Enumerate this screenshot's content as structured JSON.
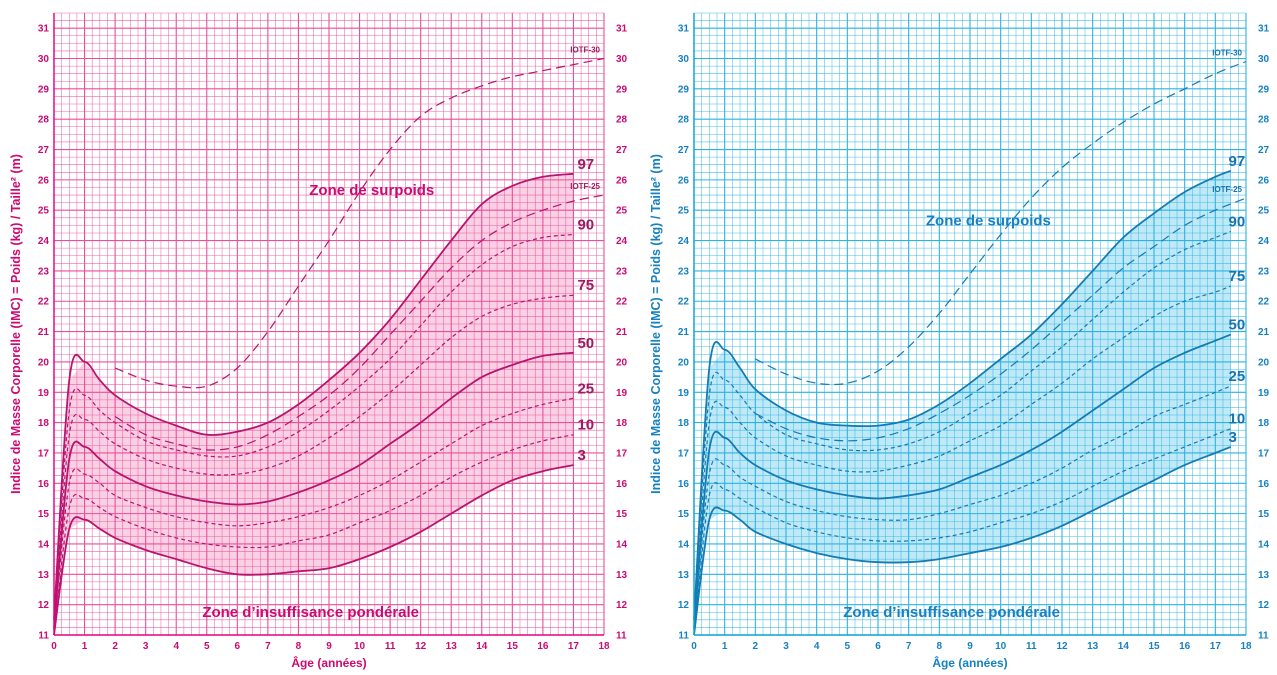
{
  "chart_data": [
    {
      "type": "line",
      "theme": {
        "accent": "#e6007e",
        "grid": "#ea4f9a",
        "fill": "#fad0e4",
        "text": "#cc0a72",
        "curve": "#b8146e",
        "label": "#9c1b63"
      },
      "ylabel": "Indice de Masse Corporelle (IMC) = Poids (kg) / Taille² (m)",
      "xlabel": "Âge (années)",
      "x_ticks": [
        "0",
        "1",
        "2",
        "3",
        "4",
        "5",
        "6",
        "7",
        "8",
        "9",
        "10",
        "11",
        "12",
        "13",
        "14",
        "15",
        "16",
        "17",
        "18"
      ],
      "y_ticks": [
        "11",
        "12",
        "13",
        "14",
        "15",
        "16",
        "17",
        "18",
        "19",
        "20",
        "21",
        "22",
        "23",
        "24",
        "25",
        "26",
        "27",
        "28",
        "29",
        "30",
        "31"
      ],
      "xlim": [
        0,
        18
      ],
      "ylim": [
        11,
        31.5
      ],
      "zone_over": "Zone de surpoids",
      "zone_under": "Zone d’insuffisance pondérale",
      "series": [
        {
          "name": "97",
          "style": "solid",
          "x": [
            0,
            0.5,
            1,
            1.5,
            2,
            3,
            4,
            5,
            6,
            7,
            8,
            9,
            10,
            11,
            12,
            13,
            14,
            15,
            16,
            17
          ],
          "y": [
            11.5,
            19.4,
            20,
            19.4,
            18.9,
            18.3,
            17.9,
            17.6,
            17.7,
            18,
            18.6,
            19.4,
            20.3,
            21.4,
            22.7,
            24,
            25.2,
            25.8,
            26.1,
            26.2
          ]
        },
        {
          "name": "IOTF-25",
          "style": "dash",
          "x": [
            2,
            3,
            4,
            5,
            6,
            7,
            8,
            9,
            10,
            11,
            12,
            13,
            14,
            15,
            16,
            17,
            18
          ],
          "y": [
            18.2,
            17.6,
            17.3,
            17.1,
            17.2,
            17.6,
            18.2,
            18.9,
            19.8,
            20.9,
            22,
            23.1,
            24,
            24.6,
            25,
            25.3,
            25.5
          ]
        },
        {
          "name": "90",
          "style": "short",
          "x": [
            0,
            0.5,
            1,
            1.5,
            2,
            3,
            4,
            5,
            6,
            7,
            8,
            9,
            10,
            11,
            12,
            13,
            14,
            15,
            16,
            17
          ],
          "y": [
            11.4,
            18.4,
            18.9,
            18.4,
            18,
            17.4,
            17.1,
            16.9,
            16.9,
            17.2,
            17.7,
            18.4,
            19.2,
            20.1,
            21.2,
            22.3,
            23.2,
            23.8,
            24.1,
            24.2
          ]
        },
        {
          "name": "75",
          "style": "short",
          "x": [
            0,
            0.5,
            1,
            1.5,
            2,
            3,
            4,
            5,
            6,
            7,
            8,
            9,
            10,
            11,
            12,
            13,
            14,
            15,
            16,
            17
          ],
          "y": [
            11.3,
            17.6,
            18.1,
            17.7,
            17.3,
            16.8,
            16.5,
            16.3,
            16.3,
            16.5,
            16.9,
            17.5,
            18.2,
            19,
            19.9,
            20.8,
            21.5,
            21.9,
            22.1,
            22.2
          ]
        },
        {
          "name": "50",
          "style": "solid",
          "x": [
            0,
            0.5,
            1,
            1.5,
            2,
            3,
            4,
            5,
            6,
            7,
            8,
            9,
            10,
            11,
            12,
            13,
            14,
            15,
            16,
            17
          ],
          "y": [
            11.2,
            16.8,
            17.2,
            16.8,
            16.4,
            15.9,
            15.6,
            15.4,
            15.3,
            15.4,
            15.7,
            16.1,
            16.6,
            17.3,
            18,
            18.8,
            19.5,
            19.9,
            20.2,
            20.3
          ]
        },
        {
          "name": "25",
          "style": "short",
          "x": [
            0,
            0.5,
            1,
            1.5,
            2,
            3,
            4,
            5,
            6,
            7,
            8,
            9,
            10,
            11,
            12,
            13,
            14,
            15,
            16,
            17
          ],
          "y": [
            11.1,
            16,
            16.3,
            16,
            15.6,
            15.2,
            14.9,
            14.7,
            14.6,
            14.7,
            14.9,
            15.2,
            15.6,
            16.1,
            16.7,
            17.3,
            17.9,
            18.3,
            18.6,
            18.8
          ]
        },
        {
          "name": "10",
          "style": "short",
          "x": [
            0,
            0.5,
            1,
            1.5,
            2,
            3,
            4,
            5,
            6,
            7,
            8,
            9,
            10,
            11,
            12,
            13,
            14,
            15,
            16,
            17
          ],
          "y": [
            11,
            15.2,
            15.5,
            15.2,
            14.9,
            14.5,
            14.2,
            14,
            13.9,
            13.9,
            14.1,
            14.3,
            14.7,
            15.1,
            15.6,
            16.2,
            16.7,
            17.1,
            17.4,
            17.6
          ]
        },
        {
          "name": "3",
          "style": "solid",
          "x": [
            0,
            0.5,
            1,
            1.5,
            2,
            3,
            4,
            5,
            6,
            7,
            8,
            9,
            10,
            11,
            12,
            13,
            14,
            15,
            16,
            17
          ],
          "y": [
            11,
            14.5,
            14.8,
            14.5,
            14.2,
            13.8,
            13.5,
            13.2,
            13,
            13,
            13.1,
            13.2,
            13.5,
            13.9,
            14.4,
            15,
            15.6,
            16.1,
            16.4,
            16.6
          ]
        },
        {
          "name": "IOTF-30",
          "style": "dash",
          "x": [
            2,
            3,
            4,
            5,
            6,
            7,
            8,
            9,
            10,
            11,
            12,
            13,
            14,
            15,
            16,
            17,
            18
          ],
          "y": [
            19.8,
            19.4,
            19.2,
            19.2,
            19.8,
            21,
            22.5,
            24,
            25.6,
            27,
            28.1,
            28.7,
            29.1,
            29.4,
            29.6,
            29.8,
            30
          ]
        }
      ]
    },
    {
      "type": "line",
      "theme": {
        "accent": "#0aa2d6",
        "grid": "#2db3e3",
        "fill": "#bfe9f7",
        "text": "#1581c2",
        "curve": "#157bb3",
        "label": "#1575b0"
      },
      "ylabel": "Indice de Masse Corporelle (IMC) = Poids (kg) / Taille² (m)",
      "xlabel": "Âge (années)",
      "x_ticks": [
        "0",
        "1",
        "2",
        "3",
        "4",
        "5",
        "6",
        "7",
        "8",
        "9",
        "10",
        "11",
        "12",
        "13",
        "14",
        "15",
        "16",
        "17",
        "18"
      ],
      "y_ticks": [
        "11",
        "12",
        "13",
        "14",
        "15",
        "16",
        "17",
        "18",
        "19",
        "20",
        "21",
        "22",
        "23",
        "24",
        "25",
        "26",
        "27",
        "28",
        "29",
        "30",
        "31"
      ],
      "xlim": [
        0,
        18
      ],
      "ylim": [
        11,
        31.5
      ],
      "zone_over": "Zone de surpoids",
      "zone_under": "Zone d’insuffisance pondérale",
      "series": [
        {
          "name": "97",
          "style": "solid",
          "x": [
            0,
            0.5,
            1,
            1.5,
            2,
            3,
            4,
            5,
            6,
            7,
            8,
            9,
            10,
            11,
            12,
            13,
            14,
            15,
            16,
            17,
            17.5
          ],
          "y": [
            11.5,
            19.8,
            20.4,
            19.8,
            19.1,
            18.4,
            18,
            17.9,
            17.9,
            18.1,
            18.6,
            19.3,
            20.1,
            20.9,
            21.9,
            23,
            24.1,
            24.9,
            25.6,
            26.1,
            26.3
          ]
        },
        {
          "name": "IOTF-25",
          "style": "dash",
          "x": [
            2,
            3,
            4,
            5,
            6,
            7,
            8,
            9,
            10,
            11,
            12,
            13,
            14,
            15,
            16,
            17,
            18
          ],
          "y": [
            18.3,
            17.8,
            17.5,
            17.4,
            17.5,
            17.8,
            18.3,
            18.9,
            19.6,
            20.4,
            21.3,
            22.2,
            23.1,
            23.8,
            24.5,
            25,
            25.4
          ]
        },
        {
          "name": "90",
          "style": "short",
          "x": [
            0,
            0.5,
            1,
            1.5,
            2,
            3,
            4,
            5,
            6,
            7,
            8,
            9,
            10,
            11,
            12,
            13,
            14,
            15,
            16,
            17,
            17.5
          ],
          "y": [
            11.4,
            18.9,
            19.4,
            18.9,
            18.3,
            17.6,
            17.3,
            17.1,
            17.1,
            17.3,
            17.7,
            18.3,
            18.9,
            19.7,
            20.5,
            21.4,
            22.3,
            23.1,
            23.7,
            24.1,
            24.3
          ]
        },
        {
          "name": "75",
          "style": "short",
          "x": [
            0,
            0.5,
            1,
            1.5,
            2,
            3,
            4,
            5,
            6,
            7,
            8,
            9,
            10,
            11,
            12,
            13,
            14,
            15,
            16,
            17,
            17.5
          ],
          "y": [
            11.3,
            18,
            18.5,
            18,
            17.5,
            16.9,
            16.6,
            16.4,
            16.4,
            16.6,
            16.9,
            17.4,
            17.9,
            18.6,
            19.3,
            20.1,
            20.8,
            21.5,
            22,
            22.3,
            22.5
          ]
        },
        {
          "name": "50",
          "style": "solid",
          "x": [
            0,
            0.5,
            1,
            1.5,
            2,
            3,
            4,
            5,
            6,
            7,
            8,
            9,
            10,
            11,
            12,
            13,
            14,
            15,
            16,
            17,
            17.5
          ],
          "y": [
            11.2,
            17.1,
            17.5,
            17,
            16.6,
            16.1,
            15.8,
            15.6,
            15.5,
            15.6,
            15.8,
            16.2,
            16.6,
            17.1,
            17.7,
            18.4,
            19.1,
            19.8,
            20.3,
            20.7,
            20.9
          ]
        },
        {
          "name": "25",
          "style": "short",
          "x": [
            0,
            0.5,
            1,
            1.5,
            2,
            3,
            4,
            5,
            6,
            7,
            8,
            9,
            10,
            11,
            12,
            13,
            14,
            15,
            16,
            17,
            17.5
          ],
          "y": [
            11.1,
            16.3,
            16.6,
            16.2,
            15.9,
            15.4,
            15.1,
            14.9,
            14.8,
            14.8,
            15,
            15.3,
            15.6,
            16,
            16.5,
            17.1,
            17.6,
            18.2,
            18.6,
            19,
            19.2
          ]
        },
        {
          "name": "10",
          "style": "short",
          "x": [
            0,
            0.5,
            1,
            1.5,
            2,
            3,
            4,
            5,
            6,
            7,
            8,
            9,
            10,
            11,
            12,
            13,
            14,
            15,
            16,
            17,
            17.5
          ],
          "y": [
            11,
            15.6,
            15.8,
            15.5,
            15.2,
            14.7,
            14.4,
            14.2,
            14.1,
            14.1,
            14.2,
            14.4,
            14.7,
            15,
            15.4,
            15.9,
            16.4,
            16.8,
            17.2,
            17.6,
            17.8
          ]
        },
        {
          "name": "3",
          "style": "solid",
          "x": [
            0,
            0.5,
            1,
            1.5,
            2,
            3,
            4,
            5,
            6,
            7,
            8,
            9,
            10,
            11,
            12,
            13,
            14,
            15,
            16,
            17,
            17.5
          ],
          "y": [
            11,
            14.8,
            15.1,
            14.8,
            14.4,
            14,
            13.7,
            13.5,
            13.4,
            13.4,
            13.5,
            13.7,
            13.9,
            14.2,
            14.6,
            15.1,
            15.6,
            16.1,
            16.6,
            17,
            17.2
          ]
        },
        {
          "name": "IOTF-30",
          "style": "dash",
          "x": [
            2,
            3,
            4,
            5,
            6,
            7,
            8,
            9,
            10,
            11,
            12,
            13,
            14,
            15,
            16,
            17,
            18
          ],
          "y": [
            20.1,
            19.6,
            19.3,
            19.3,
            19.7,
            20.5,
            21.6,
            22.9,
            24.2,
            25.4,
            26.4,
            27.2,
            27.9,
            28.5,
            29,
            29.5,
            29.9
          ]
        }
      ]
    }
  ]
}
